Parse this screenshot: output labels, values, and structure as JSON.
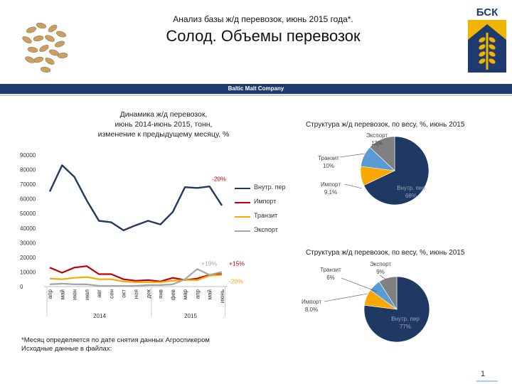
{
  "header": {
    "subtitle": "Анализ базы ж/д перевозок, июнь 2015 года*.",
    "title": "Солод. Объемы перевозок",
    "logo_text": "БСК"
  },
  "band": {
    "company": "Baltic Malt Company"
  },
  "line_chart_title_lines": [
    "Динамика ж/д перевозок,",
    "июнь 2014-июнь 2015, тонн,",
    "изменение к предыдущему месяцу, %"
  ],
  "pie1_title": "Структура ж/д перевозок, по весу, %, июнь 2015",
  "pie2_title": "Структура ж/д перевозок, по весу, %, июнь 2015",
  "colors": {
    "domestic": "#1f3864",
    "import": "#c00000",
    "transit": "#f9a800",
    "export": "#a5a5a5",
    "domestic_pie": "#1f3864",
    "import_pie": "#f9a800",
    "transit_pie": "#5b9bd5",
    "export_pie": "#808080",
    "band": "#1e3a6e"
  },
  "chart_data": [
    {
      "type": "line",
      "categories": [
        "апр",
        "май",
        "июн",
        "июл",
        "авг",
        "сен",
        "окт",
        "ноя",
        "дек",
        "янв",
        "фев",
        "мар",
        "апр",
        "май",
        "июнь"
      ],
      "year_labels": [
        "2014",
        "2015"
      ],
      "ylim": [
        0,
        90000
      ],
      "yticks": [
        "0",
        "10000",
        "20000",
        "30000",
        "40000",
        "50000",
        "60000",
        "70000",
        "80000",
        "90000"
      ],
      "series": [
        {
          "name": "Внутр. пер",
          "values": [
            65000,
            83000,
            75000,
            59000,
            45000,
            44000,
            38500,
            42000,
            45000,
            42500,
            51000,
            68000,
            67500,
            68500,
            55500
          ]
        },
        {
          "name": "Импорт",
          "values": [
            13000,
            9500,
            13000,
            14000,
            8500,
            8500,
            5000,
            4000,
            4500,
            3500,
            6000,
            4500,
            5500,
            8000,
            8500
          ]
        },
        {
          "name": "Транзит",
          "values": [
            5500,
            5000,
            6000,
            6500,
            5000,
            5000,
            3500,
            3000,
            3000,
            3000,
            4000,
            4500,
            4500,
            7500,
            8000
          ]
        },
        {
          "name": "Экспорт",
          "values": [
            1500,
            2000,
            1500,
            1500,
            500,
            500,
            500,
            500,
            1000,
            1000,
            1500,
            5000,
            12000,
            8000,
            10000
          ]
        }
      ],
      "annotations": [
        "-20%",
        "+19%",
        "+15%",
        "-20%"
      ]
    },
    {
      "type": "pie",
      "labels": [
        "Внутр. пер",
        "Импорт",
        "Транзит",
        "Экспорт"
      ],
      "values": [
        68,
        9.1,
        10,
        13
      ],
      "value_labels": [
        "68%",
        "9.1%",
        "10%",
        "13%"
      ]
    },
    {
      "type": "pie",
      "labels": [
        "Внутр. пер",
        "Импорт",
        "Транзит",
        "Экспорт"
      ],
      "values": [
        77,
        8.0,
        6,
        9
      ],
      "value_labels": [
        "77%",
        "8.0%",
        "6%",
        "9%"
      ]
    }
  ],
  "footnote_lines": [
    "*Месяц определяется по дате снятия данных Агроспикером",
    "Исходные данные в файлах:"
  ],
  "page_number": "1"
}
